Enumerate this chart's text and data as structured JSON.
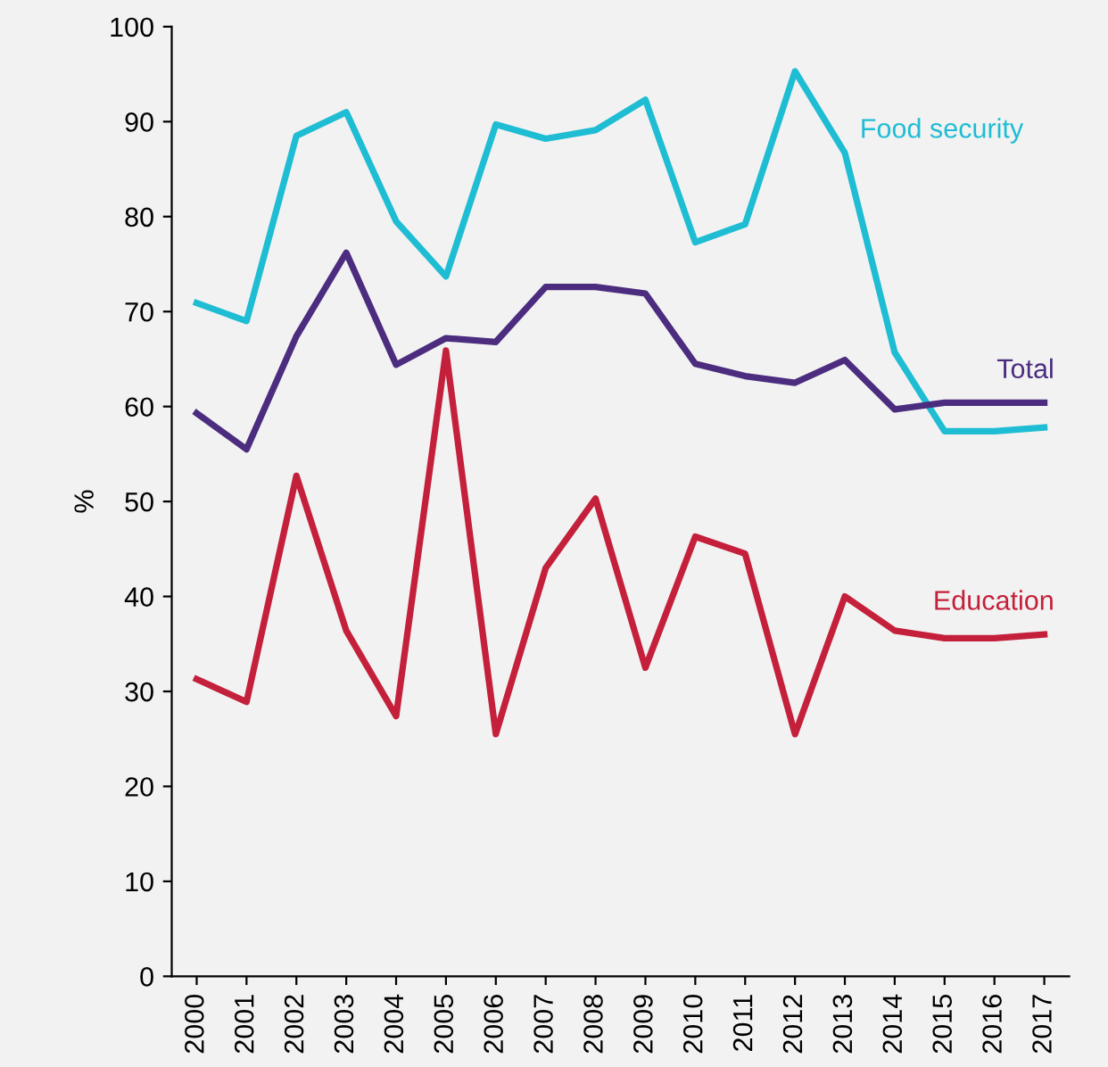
{
  "chart_data": {
    "type": "line",
    "ylabel": "%",
    "categories": [
      "2000",
      "2001",
      "2002",
      "2003",
      "2004",
      "2005",
      "2006",
      "2007",
      "2008",
      "2009",
      "2010",
      "2011",
      "2012",
      "2013",
      "2014",
      "2015",
      "2016",
      "2017"
    ],
    "series": [
      {
        "name": "Food security",
        "color": "#1fbdd3",
        "values": [
          70.9,
          69,
          88.5,
          91,
          79.5,
          73.7,
          89.7,
          88.2,
          89.1,
          92.3,
          77.3,
          79.2,
          95.3,
          86.7,
          65.7,
          57.4,
          57.4,
          57.8
        ]
      },
      {
        "name": "Total",
        "color": "#4b2c7f",
        "values": [
          59.3,
          55.5,
          67.4,
          76.2,
          64.4,
          67.2,
          66.8,
          72.6,
          72.6,
          71.9,
          64.5,
          63.2,
          62.5,
          64.9,
          59.7,
          60.4,
          60.4,
          60.4
        ]
      },
      {
        "name": "Education",
        "color": "#c4203b",
        "values": [
          31.3,
          28.9,
          52.7,
          36.4,
          27.4,
          65.9,
          25.5,
          43,
          50.3,
          32.5,
          46.3,
          44.5,
          25.5,
          40,
          36.4,
          35.6,
          35.6,
          36
        ]
      }
    ],
    "ylim": [
      0,
      100
    ],
    "yticks": [
      0,
      10,
      20,
      30,
      40,
      50,
      60,
      70,
      80,
      90,
      100
    ],
    "grid": false,
    "legend": false,
    "marker": "none",
    "line_style": "solid"
  }
}
